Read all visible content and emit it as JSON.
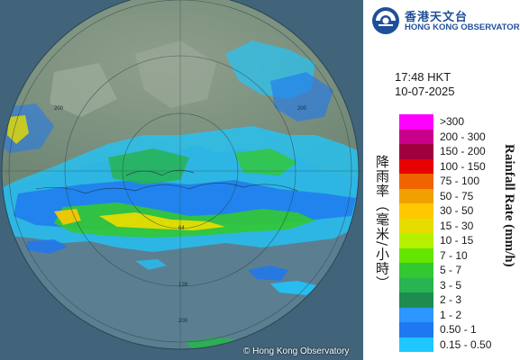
{
  "organisation": {
    "name_zh": "香港天文台",
    "name_en": "HONG KONG OBSERVATORY",
    "logo_icon": "hko-logo-icon"
  },
  "observation": {
    "time": "17:48 HKT",
    "date": "10-07-2025"
  },
  "legend": {
    "unit_zh": "降雨率（毫米/小時）",
    "unit_en": "Rainfall Rate (mm/h)",
    "items": [
      {
        "label": ">300",
        "color": "#ff00ff"
      },
      {
        "label": "200 - 300",
        "color": "#c8008c"
      },
      {
        "label": "150 - 200",
        "color": "#a0003c"
      },
      {
        "label": "100 - 150",
        "color": "#e60000"
      },
      {
        "label": "75 - 100",
        "color": "#f06400"
      },
      {
        "label": "50 - 75",
        "color": "#f0a000"
      },
      {
        "label": "30 - 50",
        "color": "#ffc800"
      },
      {
        "label": "15 - 30",
        "color": "#e6dc00"
      },
      {
        "label": "10 - 15",
        "color": "#b4f000"
      },
      {
        "label": "7 - 10",
        "color": "#64e600"
      },
      {
        "label": "5 - 7",
        "color": "#32c832"
      },
      {
        "label": "3 - 5",
        "color": "#28b450"
      },
      {
        "label": "2 - 3",
        "color": "#1e8c50"
      },
      {
        "label": "1 - 2",
        "color": "#2d96ff"
      },
      {
        "label": "0.50 - 1",
        "color": "#1e78f0"
      },
      {
        "label": "0.15 - 0.50",
        "color": "#1ec8ff"
      }
    ]
  },
  "map": {
    "range_rings": [
      "64",
      "128",
      "200",
      "200",
      "200"
    ],
    "copyright": "© Hong Kong Observatory"
  }
}
